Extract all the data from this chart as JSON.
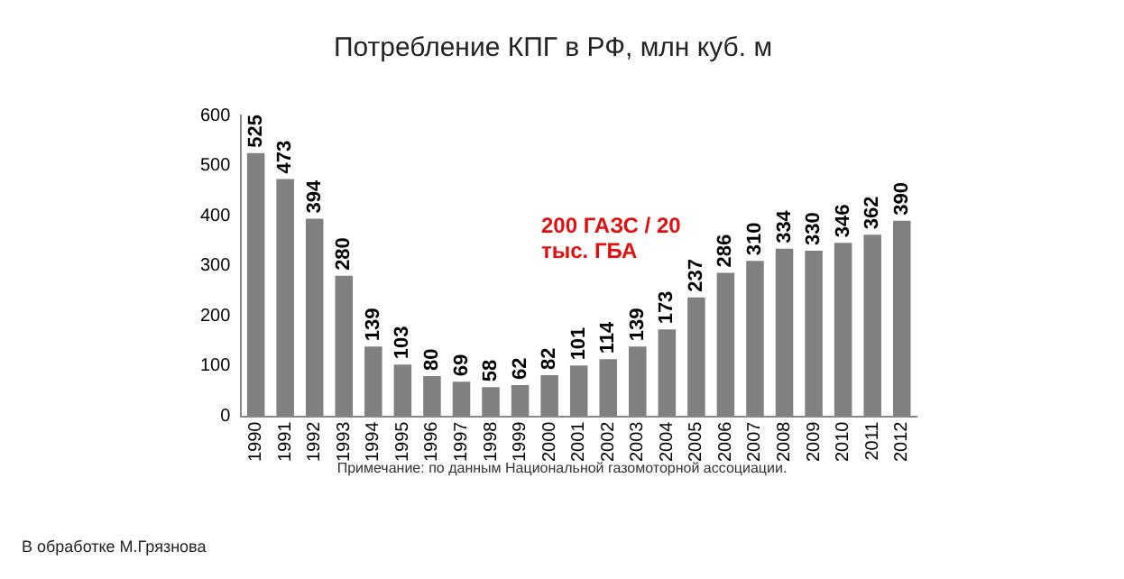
{
  "chart_data": {
    "type": "bar",
    "title": "Потребление КПГ в РФ, млн куб. м",
    "categories": [
      "1990",
      "1991",
      "1992",
      "1993",
      "1994",
      "1995",
      "1996",
      "1997",
      "1998",
      "1999",
      "2000",
      "2001",
      "2002",
      "2003",
      "2004",
      "2005",
      "2006",
      "2007",
      "2008",
      "2009",
      "2010",
      "2011",
      "2012"
    ],
    "values": [
      525,
      473,
      394,
      280,
      139,
      103,
      80,
      69,
      58,
      62,
      82,
      101,
      114,
      139,
      173,
      237,
      286,
      310,
      334,
      330,
      346,
      362,
      390
    ],
    "color": "#808080",
    "ylim": [
      0,
      600
    ],
    "yticks": [
      0,
      100,
      200,
      300,
      400,
      500,
      600
    ],
    "grid": false,
    "legend": false,
    "data_labels": true,
    "annotations": [
      "200 ГАЗС / 20 тыс. ГБА",
      "Примечание: по данным Национальной газомоторной ассоциации.",
      "В обработке М.Грязнова"
    ]
  }
}
